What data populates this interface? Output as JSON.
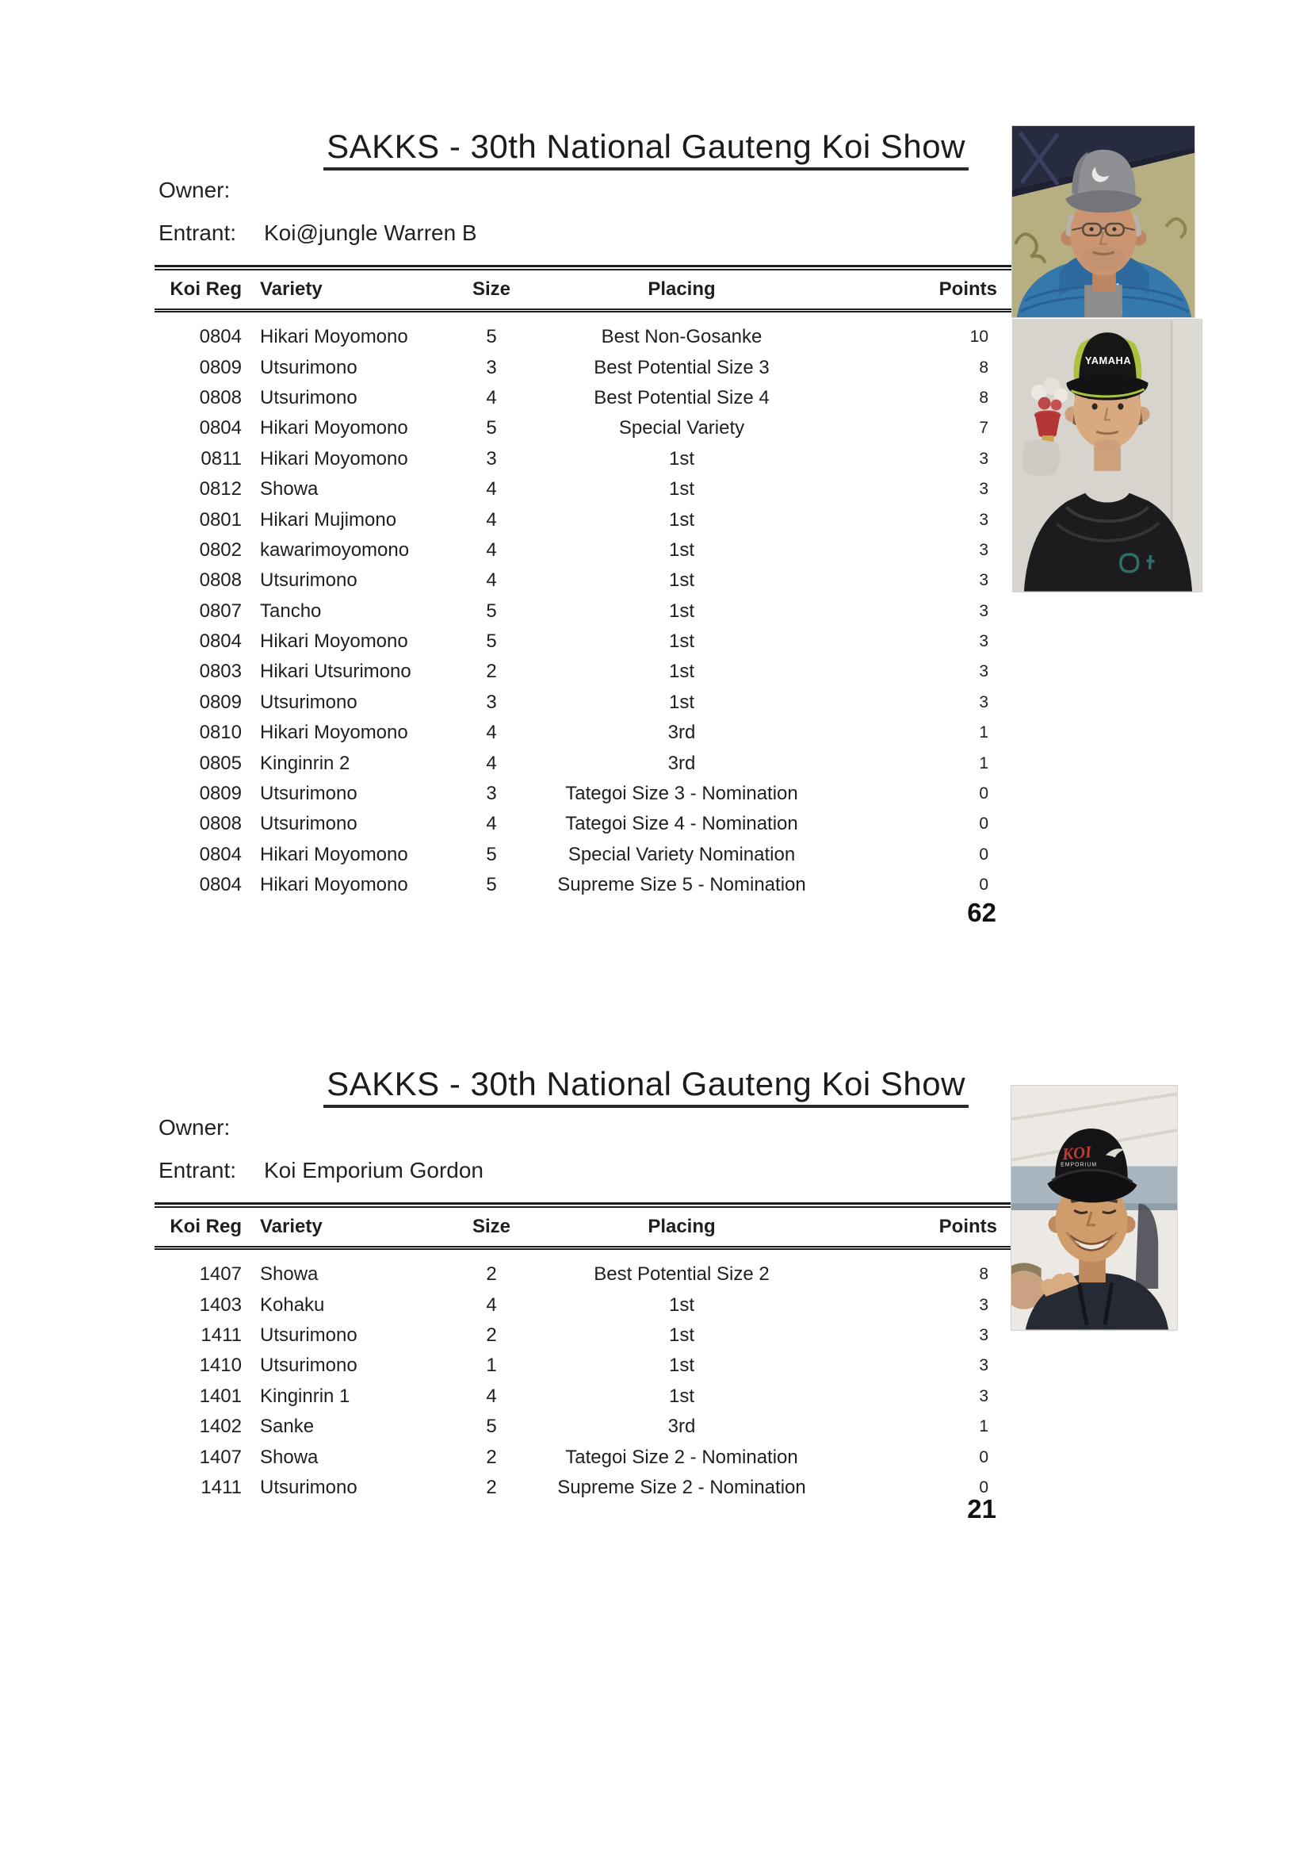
{
  "sections": [
    {
      "title": "SAKKS - 30th National Gauteng Koi Show",
      "owner_label": "Owner:",
      "owner_value": "",
      "entrant_label": "Entrant:",
      "entrant_name": "Koi@jungle Warren B",
      "columns": [
        "Koi Reg",
        "Variety",
        "Size",
        "Placing",
        "Points"
      ],
      "rows": [
        [
          "0804",
          "Hikari Moyomono",
          "5",
          "Best Non-Gosanke",
          "10"
        ],
        [
          "0809",
          "Utsurimono",
          "3",
          "Best Potential Size 3",
          "8"
        ],
        [
          "0808",
          "Utsurimono",
          "4",
          "Best Potential Size 4",
          "8"
        ],
        [
          "0804",
          "Hikari Moyomono",
          "5",
          "Special Variety",
          "7"
        ],
        [
          "0811",
          "Hikari Moyomono",
          "3",
          "1st",
          "3"
        ],
        [
          "0812",
          "Showa",
          "4",
          "1st",
          "3"
        ],
        [
          "0801",
          "Hikari Mujimono",
          "4",
          "1st",
          "3"
        ],
        [
          "0802",
          "kawarimoyomono",
          "4",
          "1st",
          "3"
        ],
        [
          "0808",
          "Utsurimono",
          "4",
          "1st",
          "3"
        ],
        [
          "0807",
          "Tancho",
          "5",
          "1st",
          "3"
        ],
        [
          "0804",
          "Hikari Moyomono",
          "5",
          "1st",
          "3"
        ],
        [
          "0803",
          "Hikari Utsurimono",
          "2",
          "1st",
          "3"
        ],
        [
          "0809",
          "Utsurimono",
          "3",
          "1st",
          "3"
        ],
        [
          "0810",
          "Hikari Moyomono",
          "4",
          "3rd",
          "1"
        ],
        [
          "0805",
          "Kinginrin 2",
          "4",
          "3rd",
          "1"
        ],
        [
          "0809",
          "Utsurimono",
          "3",
          "Tategoi Size 3 - Nomination",
          "0"
        ],
        [
          "0808",
          "Utsurimono",
          "4",
          "Tategoi Size 4 - Nomination",
          "0"
        ],
        [
          "0804",
          "Hikari Moyomono",
          "5",
          "Special Variety Nomination",
          "0"
        ],
        [
          "0804",
          "Hikari Moyomono",
          "5",
          "Supreme Size 5 - Nomination",
          "0"
        ]
      ],
      "total_points": "62",
      "photos": [
        {
          "alt": "man in gray cap and glasses wearing blue puffer jacket under dark gazebo",
          "cap_text": ""
        },
        {
          "alt": "young man in black and lime trucker cap and black hoodie",
          "cap_text": "YAMAHA"
        }
      ]
    },
    {
      "title": "SAKKS - 30th National Gauteng Koi Show",
      "owner_label": "Owner:",
      "owner_value": "",
      "entrant_label": "Entrant:",
      "entrant_name": "Koi Emporium Gordon",
      "columns": [
        "Koi Reg",
        "Variety",
        "Size",
        "Placing",
        "Points"
      ],
      "rows": [
        [
          "1407",
          "Showa",
          "2",
          "Best Potential Size 2",
          "8"
        ],
        [
          "1403",
          "Kohaku",
          "4",
          "1st",
          "3"
        ],
        [
          "1411",
          "Utsurimono",
          "2",
          "1st",
          "3"
        ],
        [
          "1410",
          "Utsurimono",
          "1",
          "1st",
          "3"
        ],
        [
          "1401",
          "Kinginrin 1",
          "4",
          "1st",
          "3"
        ],
        [
          "1402",
          "Sanke",
          "5",
          "3rd",
          "1"
        ],
        [
          "1407",
          "Showa",
          "2",
          "Tategoi Size 2 - Nomination",
          "0"
        ],
        [
          "1411",
          "Utsurimono",
          "2",
          "Supreme Size 2 - Nomination",
          "0"
        ]
      ],
      "total_points": "21",
      "photos": [
        {
          "alt": "smiling man in black cap with red koi emporium logo",
          "cap_brand": "KOI",
          "cap_sub": "EMPORIUM"
        }
      ]
    }
  ]
}
